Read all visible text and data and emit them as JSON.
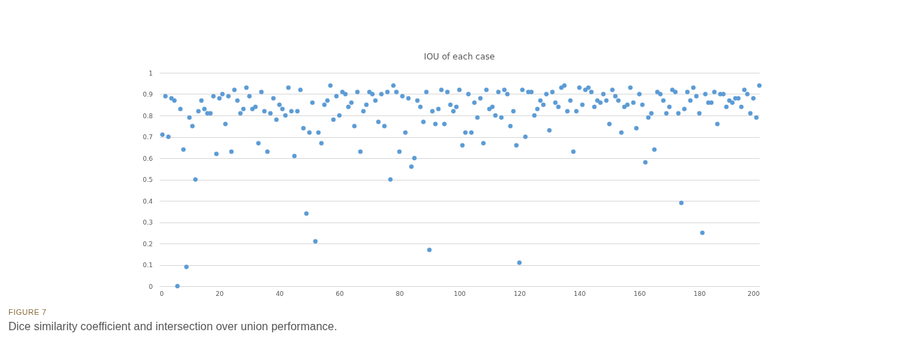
{
  "chart_data": {
    "type": "scatter",
    "title": "IOU of each case",
    "marker": "circle",
    "grid": "y",
    "color": "#5b9bd5",
    "x": [
      1,
      2,
      3,
      4,
      5,
      6,
      7,
      8,
      9,
      10,
      11,
      12,
      13,
      14,
      15,
      16,
      17,
      18,
      19,
      20,
      21,
      22,
      23,
      24,
      25,
      26,
      27,
      28,
      29,
      30,
      31,
      32,
      33,
      34,
      35,
      36,
      37,
      38,
      39,
      40,
      41,
      42,
      43,
      44,
      45,
      46,
      47,
      48,
      49,
      50,
      51,
      52,
      53,
      54,
      55,
      56,
      57,
      58,
      59,
      60,
      61,
      62,
      63,
      64,
      65,
      66,
      67,
      68,
      69,
      70,
      71,
      72,
      73,
      74,
      75,
      76,
      77,
      78,
      79,
      80,
      81,
      82,
      83,
      84,
      85,
      86,
      87,
      88,
      89,
      90,
      91,
      92,
      93,
      94,
      95,
      96,
      97,
      98,
      99,
      100,
      101,
      102,
      103,
      104,
      105,
      106,
      107,
      108,
      109,
      110,
      111,
      112,
      113,
      114,
      115,
      116,
      117,
      118,
      119,
      120,
      121,
      122,
      123,
      124,
      125,
      126,
      127,
      128,
      129,
      130,
      131,
      132,
      133,
      134,
      135,
      136,
      137,
      138,
      139,
      140,
      141,
      142,
      143,
      144,
      145,
      146,
      147,
      148,
      149,
      150,
      151,
      152,
      153,
      154,
      155,
      156,
      157,
      158,
      159,
      160,
      161,
      162,
      163,
      164,
      165,
      166,
      167,
      168,
      169,
      170,
      171,
      172,
      173,
      174,
      175,
      176,
      177,
      178,
      179,
      180,
      181,
      182,
      183,
      184,
      185,
      186,
      187,
      188,
      189,
      190,
      191,
      192,
      193,
      194,
      195,
      196,
      197,
      198,
      199,
      200
    ],
    "values": [
      0.71,
      0.89,
      0.7,
      0.88,
      0.87,
      0.0,
      0.83,
      0.64,
      0.09,
      0.79,
      0.75,
      0.5,
      0.82,
      0.87,
      0.83,
      0.81,
      0.81,
      0.89,
      0.62,
      0.88,
      0.9,
      0.76,
      0.89,
      0.63,
      0.92,
      0.87,
      0.81,
      0.83,
      0.93,
      0.89,
      0.83,
      0.84,
      0.67,
      0.91,
      0.82,
      0.63,
      0.81,
      0.88,
      0.78,
      0.85,
      0.83,
      0.8,
      0.93,
      0.82,
      0.61,
      0.82,
      0.92,
      0.74,
      0.34,
      0.72,
      0.86,
      0.21,
      0.72,
      0.67,
      0.85,
      0.87,
      0.94,
      0.78,
      0.89,
      0.8,
      0.91,
      0.9,
      0.84,
      0.86,
      0.75,
      0.91,
      0.63,
      0.82,
      0.85,
      0.91,
      0.9,
      0.87,
      0.77,
      0.9,
      0.75,
      0.91,
      0.5,
      0.94,
      0.91,
      0.63,
      0.89,
      0.72,
      0.88,
      0.56,
      0.6,
      0.87,
      0.84,
      0.77,
      0.91,
      0.17,
      0.82,
      0.76,
      0.83,
      0.92,
      0.76,
      0.91,
      0.85,
      0.82,
      0.84,
      0.92,
      0.66,
      0.72,
      0.9,
      0.72,
      0.86,
      0.79,
      0.88,
      0.67,
      0.92,
      0.83,
      0.84,
      0.8,
      0.91,
      0.79,
      0.92,
      0.9,
      0.75,
      0.82,
      0.66,
      0.11,
      0.92,
      0.7,
      0.91,
      0.91,
      0.8,
      0.83,
      0.87,
      0.85,
      0.9,
      0.73,
      0.91,
      0.86,
      0.84,
      0.93,
      0.94,
      0.82,
      0.87,
      0.63,
      0.82,
      0.93,
      0.85,
      0.92,
      0.93,
      0.91,
      0.84,
      0.87,
      0.86,
      0.9,
      0.87,
      0.76,
      0.92,
      0.89,
      0.87,
      0.72,
      0.84,
      0.85,
      0.93,
      0.86,
      0.74,
      0.9,
      0.85,
      0.58,
      0.79,
      0.81,
      0.64,
      0.91,
      0.9,
      0.87,
      0.81,
      0.84,
      0.92,
      0.91,
      0.81,
      0.39,
      0.83,
      0.91,
      0.87,
      0.93,
      0.89,
      0.81,
      0.25,
      0.9,
      0.86,
      0.86,
      0.91,
      0.76,
      0.9,
      0.9,
      0.84,
      0.87,
      0.86,
      0.88,
      0.88,
      0.84,
      0.92,
      0.9,
      0.81,
      0.88,
      0.79,
      0.94
    ],
    "xlim": [
      0,
      200
    ],
    "xticks": [
      0,
      20,
      40,
      60,
      80,
      100,
      120,
      140,
      160,
      180,
      200
    ],
    "ylim": [
      0,
      1
    ],
    "yticks": [
      0,
      0.1,
      0.2,
      0.3,
      0.4,
      0.5,
      0.6,
      0.7,
      0.8,
      0.9,
      1
    ],
    "annotations": [
      "FIGURE 7",
      "Dice similarity coefficient and intersection over union performance."
    ]
  }
}
